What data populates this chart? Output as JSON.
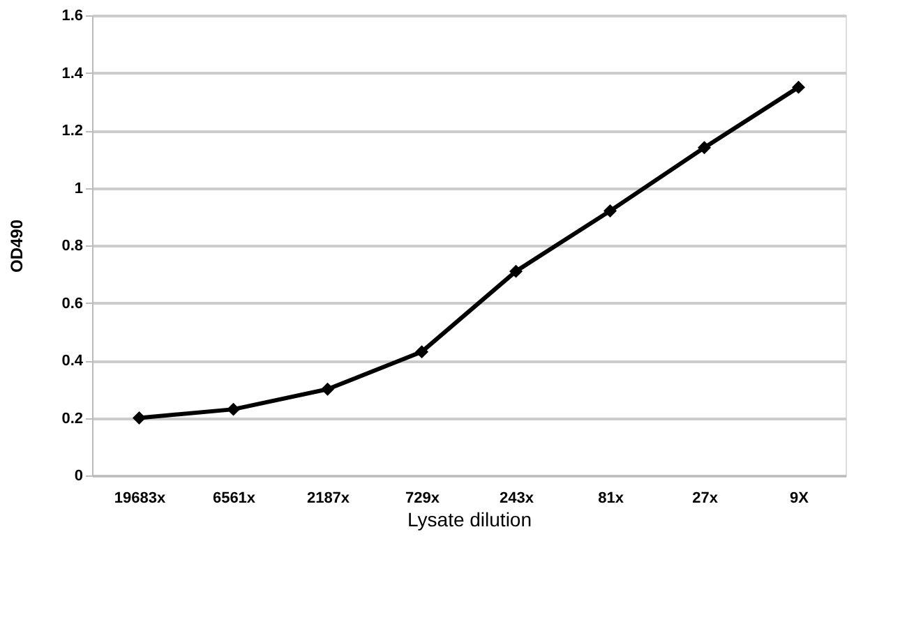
{
  "chart_data": {
    "type": "line",
    "xlabel": "Lysate dilution",
    "ylabel": "OD490",
    "categories": [
      "19683x",
      "6561x",
      "2187x",
      "729x",
      "243x",
      "81x",
      "27x",
      "9X"
    ],
    "series": [
      {
        "color": "#000000",
        "values": [
          0.2,
          0.23,
          0.3,
          0.43,
          0.71,
          0.92,
          1.14,
          1.35
        ]
      }
    ],
    "ylim": [
      0,
      1.6
    ],
    "yticks": [
      0,
      0.2,
      0.4,
      0.6,
      0.8,
      1,
      1.2,
      1.4,
      1.6
    ],
    "grid": "y",
    "marker": "diamond",
    "line_style": "solid"
  }
}
